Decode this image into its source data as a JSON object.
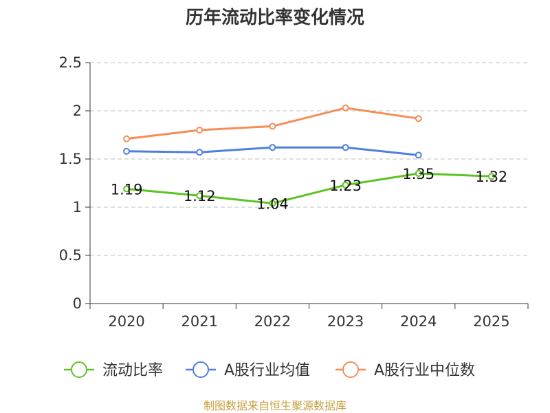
{
  "chart_data": {
    "type": "line",
    "title": "历年流动比率变化情况",
    "categories": [
      "2020",
      "2021",
      "2022",
      "2023",
      "2024",
      "2025"
    ],
    "ylim": [
      0,
      2.5
    ],
    "yticks": [
      "0",
      "0.5",
      "1",
      "1.5",
      "2",
      "2.5"
    ],
    "grid": true,
    "legend_position": "bottom",
    "series": [
      {
        "name": "流动比率",
        "color": "#5cc323",
        "values": [
          1.19,
          1.12,
          1.04,
          1.23,
          1.35,
          1.32
        ],
        "labels": [
          "1.19",
          "1.12",
          "1.04",
          "1.23",
          "1.35",
          "1.32"
        ]
      },
      {
        "name": "A股行业均值",
        "color": "#4e7fe0",
        "values": [
          1.58,
          1.57,
          1.62,
          1.62,
          1.54,
          null
        ]
      },
      {
        "name": "A股行业中位数",
        "color": "#f68d57",
        "values": [
          1.71,
          1.8,
          1.84,
          2.03,
          1.92,
          null
        ]
      }
    ]
  },
  "source_text": "制图数据来自恒生聚源数据库"
}
